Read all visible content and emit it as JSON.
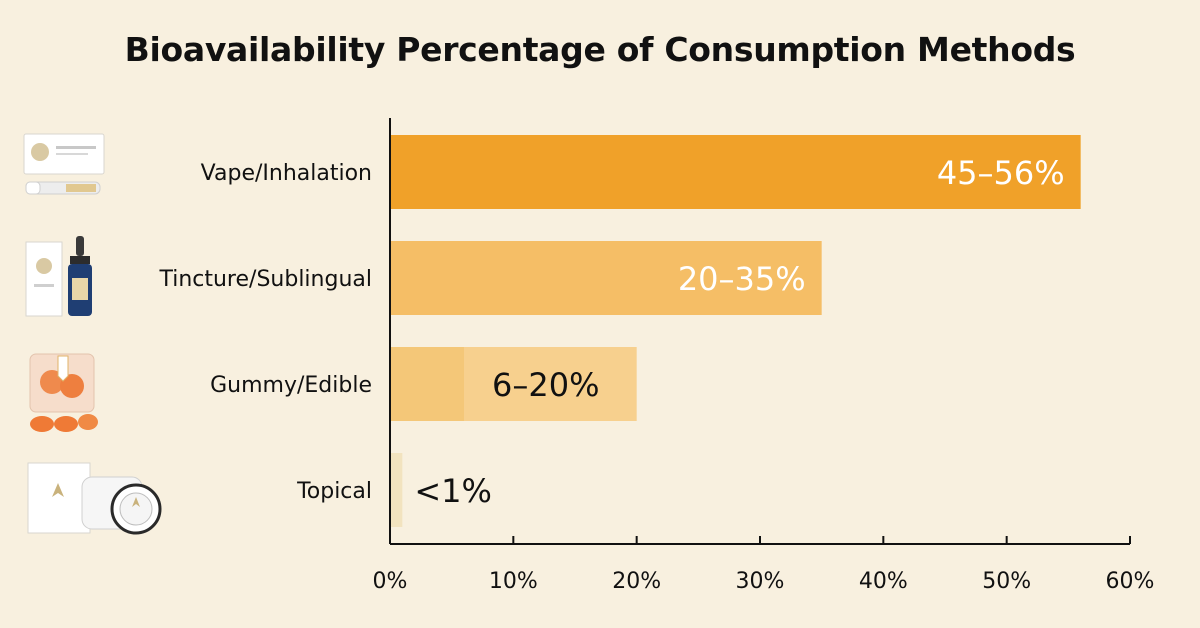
{
  "chart_data": {
    "type": "bar",
    "orientation": "horizontal",
    "title": "Bioavailability Percentage of Consumption Methods",
    "xlabel": "",
    "ylabel": "",
    "xlim": [
      0,
      60
    ],
    "x_ticks": [
      0,
      10,
      20,
      30,
      40,
      50,
      60
    ],
    "x_tick_format": "{v}%",
    "grid": false,
    "categories": [
      "Vape/Inhalation",
      "Tincture/Sublingual",
      "Gummy/Edible",
      "Topical"
    ],
    "ranges": [
      [
        45,
        56
      ],
      [
        20,
        35
      ],
      [
        6,
        20
      ],
      [
        0,
        1
      ]
    ],
    "labels": [
      "45–56%",
      "20–35%",
      "6–20%",
      "<1%"
    ],
    "colors": [
      "#F0A129",
      "#F5BE66",
      "#F7D08E",
      "#F2E3BF"
    ],
    "label_colors": [
      "#FFFFFF",
      "#FFFFFF",
      "#111111",
      "#111111"
    ]
  },
  "icons": [
    "vape-product-icon",
    "tincture-product-icon",
    "gummy-product-icon",
    "topical-product-icon"
  ]
}
